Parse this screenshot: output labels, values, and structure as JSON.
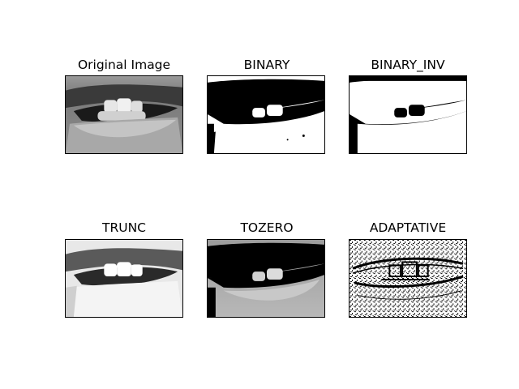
{
  "figure": {
    "panels": [
      {
        "id": "original",
        "title": "Original Image",
        "style": "gray"
      },
      {
        "id": "binary",
        "title": "BINARY",
        "style": "binary"
      },
      {
        "id": "binary_inv",
        "title": "BINARY_INV",
        "style": "binary_inv"
      },
      {
        "id": "trunc",
        "title": "TRUNC",
        "style": "trunc"
      },
      {
        "id": "tozero",
        "title": "TOZERO",
        "style": "tozero"
      },
      {
        "id": "adaptive",
        "title": "ADAPTATIVE",
        "style": "adaptive"
      }
    ]
  }
}
